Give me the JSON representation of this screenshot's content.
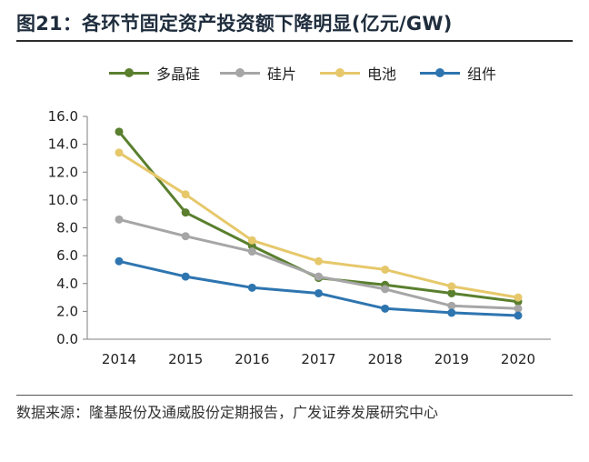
{
  "title": "图21：各环节固定资产投资额下降明显(亿元/GW)",
  "note": "数据来源：隆基股份及通威股份定期报告，广发证券发展研究中心",
  "chart_data": {
    "type": "line",
    "title": "图21：各环节固定资产投资额下降明显(亿元/GW)",
    "xlabel": "",
    "ylabel": "",
    "categories": [
      "2014",
      "2015",
      "2016",
      "2017",
      "2018",
      "2019",
      "2020"
    ],
    "ylim": [
      0,
      16
    ],
    "yticks": [
      "0.0",
      "2.0",
      "4.0",
      "6.0",
      "8.0",
      "10.0",
      "12.0",
      "14.0",
      "16.0"
    ],
    "grid": false,
    "legend_position": "top",
    "series": [
      {
        "name": "多晶硅",
        "color": "#5a7f2e",
        "values": [
          14.9,
          9.1,
          6.7,
          4.4,
          3.9,
          3.3,
          2.7
        ]
      },
      {
        "name": "硅片",
        "color": "#a6a6a6",
        "values": [
          8.6,
          7.4,
          6.3,
          4.5,
          3.6,
          2.4,
          2.2
        ]
      },
      {
        "name": "电池",
        "color": "#e6c86b",
        "values": [
          13.4,
          10.4,
          7.1,
          5.6,
          5.0,
          3.8,
          3.0
        ]
      },
      {
        "name": "组件",
        "color": "#2e75b0",
        "values": [
          5.6,
          4.5,
          3.7,
          3.3,
          2.2,
          1.9,
          1.7
        ]
      }
    ]
  }
}
